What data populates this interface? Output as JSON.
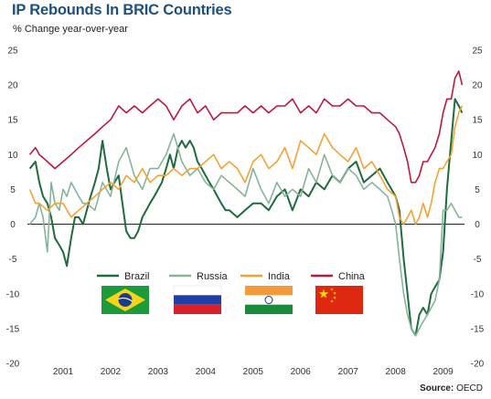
{
  "title": "IP Rebounds In BRIC Countries",
  "subtitle": "% Change year-over-year",
  "source_label": "Source:",
  "source_value": "OECD",
  "colors": {
    "Brazil": "#1e6b3c",
    "Russia": "#86b49a",
    "India": "#f5a234",
    "China": "#c0183d",
    "zero_line": "#222222",
    "title": "#1d4f80"
  },
  "flags": {
    "Brazil": "brazil-flag-icon",
    "Russia": "russia-flag-icon",
    "India": "india-flag-icon",
    "China": "china-flag-icon"
  },
  "chart_data": {
    "type": "line",
    "title": "IP Rebounds In BRIC Countries",
    "ylabel": "% Change year-over-year",
    "xlabel": "",
    "ylim": [
      -20,
      25
    ],
    "yticks": [
      -20,
      -15,
      -10,
      -5,
      0,
      5,
      10,
      15,
      20,
      25
    ],
    "xlim": [
      2000.75,
      2009.95
    ],
    "xticks": [
      "2001",
      "2002",
      "2003",
      "2004",
      "2005",
      "2006",
      "2007",
      "2008",
      "2009"
    ],
    "legend_position": "lower-middle",
    "grid": false,
    "series": [
      {
        "name": "Brazil",
        "x": [
          2000.8,
          2000.92,
          2001.0,
          2001.08,
          2001.17,
          2001.25,
          2001.33,
          2001.42,
          2001.5,
          2001.58,
          2001.67,
          2001.75,
          2001.83,
          2001.92,
          2002.0,
          2002.08,
          2002.17,
          2002.25,
          2002.33,
          2002.42,
          2002.5,
          2002.58,
          2002.67,
          2002.75,
          2002.83,
          2002.92,
          2003.0,
          2003.08,
          2003.17,
          2003.25,
          2003.33,
          2003.42,
          2003.5,
          2003.58,
          2003.67,
          2003.75,
          2003.83,
          2003.92,
          2004.0,
          2004.08,
          2004.17,
          2004.25,
          2004.33,
          2004.42,
          2004.5,
          2004.58,
          2004.67,
          2004.75,
          2004.83,
          2004.92,
          2005.0,
          2005.17,
          2005.33,
          2005.5,
          2005.67,
          2005.83,
          2006.0,
          2006.17,
          2006.33,
          2006.5,
          2006.67,
          2006.83,
          2007.0,
          2007.17,
          2007.33,
          2007.5,
          2007.67,
          2007.83,
          2008.0,
          2008.17,
          2008.33,
          2008.5,
          2008.58,
          2008.67,
          2008.75,
          2008.83,
          2008.92,
          2009.0,
          2009.08,
          2009.17,
          2009.25,
          2009.33,
          2009.42,
          2009.5,
          2009.58,
          2009.67,
          2009.75,
          2009.83,
          2009.9
        ],
        "y": [
          8,
          9,
          6,
          4,
          3,
          1,
          -2,
          -3,
          -4,
          -6,
          -2,
          1,
          1,
          0,
          2,
          4,
          6,
          8,
          12,
          8,
          5,
          6,
          7,
          3,
          -1,
          -2,
          -2,
          -1,
          1,
          2,
          3,
          4,
          5,
          6,
          8,
          10,
          8,
          11,
          12,
          11,
          12,
          11,
          9,
          8,
          7,
          6,
          5,
          4,
          3,
          2,
          2,
          1,
          2,
          3,
          3,
          2,
          4,
          5,
          2,
          5,
          4,
          6,
          5,
          7,
          6,
          8,
          9,
          6,
          7,
          8,
          6,
          4,
          2,
          -5,
          -10,
          -15,
          -16,
          -13,
          -12,
          -13,
          -10,
          -9,
          -8,
          -4,
          5,
          12,
          18,
          17,
          16
        ]
      },
      {
        "name": "Russia",
        "x": [
          2000.8,
          2000.92,
          2001.0,
          2001.08,
          2001.17,
          2001.25,
          2001.33,
          2001.42,
          2001.5,
          2001.58,
          2001.67,
          2001.75,
          2001.83,
          2001.92,
          2002.0,
          2002.17,
          2002.33,
          2002.5,
          2002.67,
          2002.83,
          2003.0,
          2003.17,
          2003.33,
          2003.5,
          2003.67,
          2003.83,
          2004.0,
          2004.17,
          2004.33,
          2004.5,
          2004.67,
          2004.83,
          2005.0,
          2005.17,
          2005.33,
          2005.5,
          2005.67,
          2005.83,
          2006.0,
          2006.17,
          2006.33,
          2006.5,
          2006.67,
          2006.83,
          2007.0,
          2007.17,
          2007.33,
          2007.5,
          2007.67,
          2007.83,
          2008.0,
          2008.17,
          2008.33,
          2008.42,
          2008.5,
          2008.58,
          2008.67,
          2008.75,
          2008.83,
          2008.92,
          2009.0,
          2009.08,
          2009.17,
          2009.25,
          2009.33,
          2009.42,
          2009.5,
          2009.58,
          2009.67,
          2009.75,
          2009.83,
          2009.9
        ],
        "y": [
          0,
          1,
          3,
          1,
          -4,
          6,
          3,
          2,
          5,
          4,
          6,
          5,
          4,
          3,
          3,
          2,
          6,
          4,
          9,
          11,
          7,
          5,
          8,
          8,
          10,
          13,
          9,
          7,
          8,
          6,
          5,
          7,
          6,
          5,
          4,
          8,
          5,
          3,
          6,
          4,
          5,
          4,
          8,
          6,
          10,
          7,
          6,
          8,
          7,
          5,
          6,
          5,
          4,
          2,
          0,
          -5,
          -10,
          -13,
          -15,
          -16,
          -15,
          -14,
          -13,
          -12,
          -11,
          -8,
          2,
          2,
          3,
          2,
          1,
          1
        ]
      },
      {
        "name": "India",
        "x": [
          2000.8,
          2000.92,
          2001.0,
          2001.17,
          2001.33,
          2001.5,
          2001.67,
          2001.83,
          2002.0,
          2002.17,
          2002.33,
          2002.5,
          2002.67,
          2002.83,
          2003.0,
          2003.17,
          2003.33,
          2003.5,
          2003.67,
          2003.83,
          2004.0,
          2004.17,
          2004.33,
          2004.5,
          2004.67,
          2004.83,
          2005.0,
          2005.17,
          2005.33,
          2005.5,
          2005.67,
          2005.83,
          2006.0,
          2006.17,
          2006.33,
          2006.5,
          2006.67,
          2006.83,
          2007.0,
          2007.17,
          2007.33,
          2007.5,
          2007.67,
          2007.83,
          2008.0,
          2008.17,
          2008.33,
          2008.5,
          2008.58,
          2008.67,
          2008.75,
          2008.83,
          2008.92,
          2009.0,
          2009.08,
          2009.17,
          2009.25,
          2009.33,
          2009.42,
          2009.5,
          2009.58,
          2009.67,
          2009.75,
          2009.83,
          2009.9
        ],
        "y": [
          5,
          3,
          3,
          2,
          3,
          3,
          1,
          2,
          3,
          4,
          5,
          6,
          5,
          7,
          6,
          8,
          6,
          7,
          7,
          8,
          7,
          8,
          8,
          9,
          10,
          8,
          9,
          8,
          6,
          9,
          10,
          8,
          9,
          11,
          8,
          12,
          11,
          10,
          13,
          11,
          10,
          9,
          11,
          8,
          9,
          7,
          5,
          4,
          1,
          0,
          1,
          2,
          0,
          1,
          3,
          1,
          3,
          6,
          8,
          8,
          9,
          10,
          14,
          16,
          17
        ]
      },
      {
        "name": "China",
        "x": [
          2000.8,
          2000.92,
          2001.0,
          2001.17,
          2001.33,
          2001.5,
          2001.67,
          2001.83,
          2002.0,
          2002.17,
          2002.33,
          2002.5,
          2002.67,
          2002.83,
          2003.0,
          2003.17,
          2003.33,
          2003.5,
          2003.67,
          2003.83,
          2004.0,
          2004.17,
          2004.33,
          2004.5,
          2004.67,
          2004.83,
          2005.0,
          2005.17,
          2005.33,
          2005.5,
          2005.67,
          2005.83,
          2006.0,
          2006.17,
          2006.33,
          2006.5,
          2006.67,
          2006.83,
          2007.0,
          2007.17,
          2007.33,
          2007.5,
          2007.67,
          2007.83,
          2008.0,
          2008.17,
          2008.33,
          2008.5,
          2008.58,
          2008.67,
          2008.75,
          2008.83,
          2008.92,
          2009.0,
          2009.08,
          2009.17,
          2009.25,
          2009.33,
          2009.42,
          2009.5,
          2009.58,
          2009.67,
          2009.75,
          2009.83,
          2009.9
        ],
        "y": [
          10,
          11,
          10,
          9,
          8,
          9,
          10,
          11,
          12,
          13,
          14,
          15,
          17,
          16,
          17,
          16,
          17,
          18,
          17,
          15,
          17,
          18,
          16,
          17,
          15,
          16,
          16,
          16,
          17,
          16,
          17,
          16,
          17,
          17,
          18,
          16,
          17,
          16,
          18,
          17,
          17,
          18,
          17,
          17,
          16,
          16,
          15,
          14,
          13,
          11,
          9,
          6,
          6,
          7,
          9,
          9,
          10,
          11,
          13,
          16,
          18,
          18,
          21,
          22,
          20
        ]
      }
    ]
  }
}
